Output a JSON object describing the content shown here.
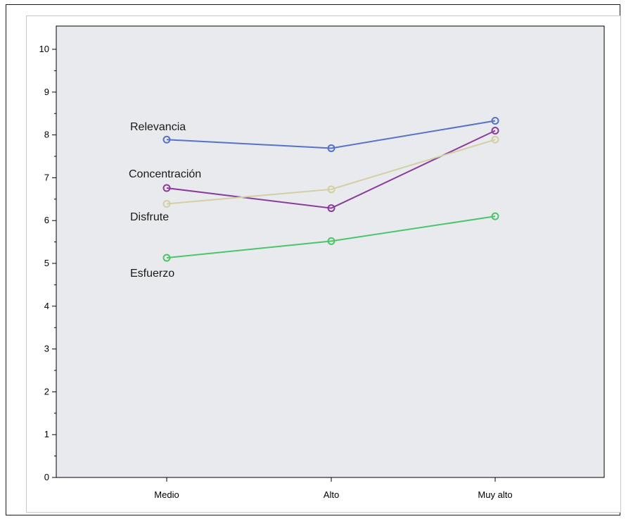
{
  "chart_data": {
    "type": "line",
    "title": "",
    "xlabel": "",
    "ylabel": "",
    "categories": [
      "Medio",
      "Alto",
      "Muy alto"
    ],
    "ylim": [
      0,
      10.5
    ],
    "yticks": [
      0,
      1,
      2,
      3,
      4,
      5,
      6,
      7,
      8,
      9,
      10
    ],
    "grid": false,
    "legend": "inline labels at left",
    "plot_background": "#e9eaee",
    "series": [
      {
        "name": "Relevancia",
        "color": "#5673c7",
        "values": [
          7.89,
          7.69,
          8.33
        ]
      },
      {
        "name": "Concentración",
        "color": "#8a3d9b",
        "values": [
          6.76,
          6.29,
          8.1
        ]
      },
      {
        "name": "Disfrute",
        "color": "#d2cfa3",
        "values": [
          6.39,
          6.73,
          7.89
        ]
      },
      {
        "name": "Esfuerzo",
        "color": "#4cc46a",
        "values": [
          5.13,
          5.52,
          6.1
        ]
      }
    ]
  }
}
